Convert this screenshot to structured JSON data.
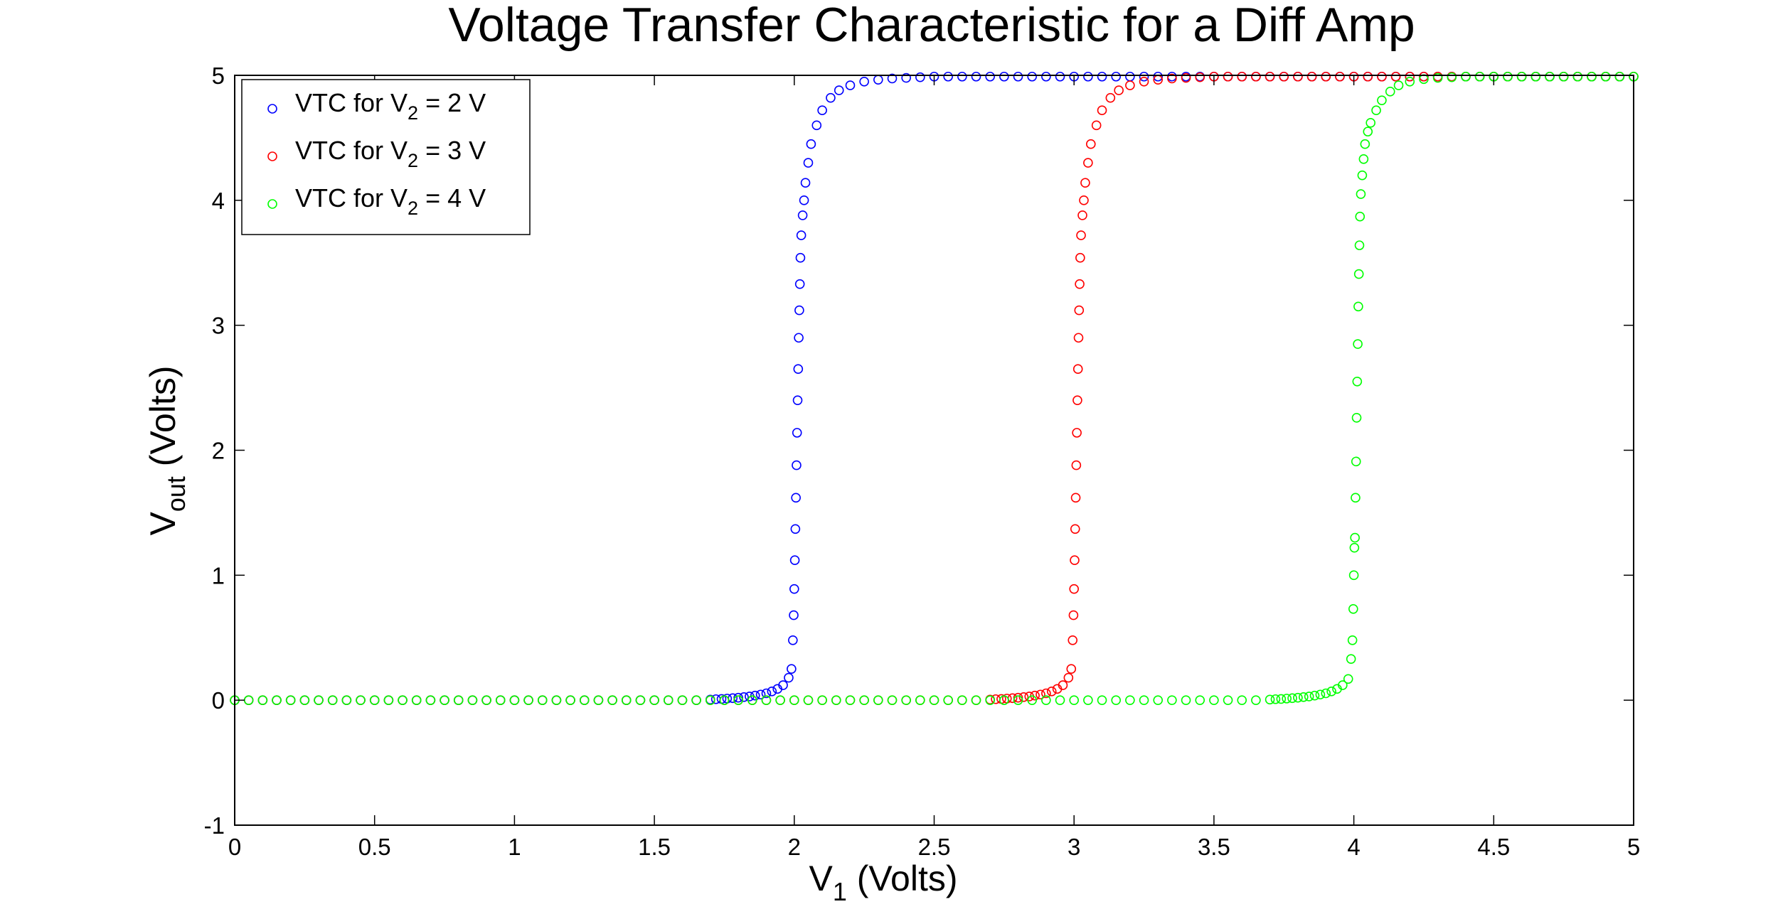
{
  "chart_data": {
    "type": "scatter",
    "title": "Voltage Transfer Characteristic for a Diff Amp",
    "xlabel": {
      "main": "V",
      "sub": "1",
      "rest": " (Volts)"
    },
    "ylabel": {
      "main": "V",
      "sub": "out",
      "rest": " (Volts)"
    },
    "xlim": [
      0,
      5
    ],
    "ylim": [
      -1,
      5
    ],
    "xticks": [
      0,
      0.5,
      1,
      1.5,
      2,
      2.5,
      3,
      3.5,
      4,
      4.5,
      5
    ],
    "xtick_labels": [
      "0",
      "0.5",
      "1",
      "1.5",
      "2",
      "2.5",
      "3",
      "3.5",
      "4",
      "4.5",
      "5"
    ],
    "yticks": [
      -1,
      0,
      1,
      2,
      3,
      4,
      5
    ],
    "ytick_labels": [
      "-1",
      "0",
      "1",
      "2",
      "3",
      "4",
      "5"
    ],
    "grid": false,
    "marker": "open-circle",
    "legend_position": "top-left",
    "series": [
      {
        "name": "VTC for V2 = 2 V",
        "label_parts": {
          "pre": "VTC for V",
          "sub": "2",
          "post": " = 2 V"
        },
        "color": "#0000ff",
        "x": [
          0,
          0.05,
          0.1,
          0.15,
          0.2,
          0.25,
          0.3,
          0.35,
          0.4,
          0.45,
          0.5,
          0.55,
          0.6,
          0.65,
          0.7,
          0.75,
          0.8,
          0.85,
          0.9,
          0.95,
          1,
          1.05,
          1.1,
          1.15,
          1.2,
          1.25,
          1.3,
          1.35,
          1.4,
          1.45,
          1.5,
          1.55,
          1.6,
          1.65,
          1.7,
          1.72,
          1.74,
          1.76,
          1.78,
          1.8,
          1.82,
          1.84,
          1.86,
          1.88,
          1.9,
          1.92,
          1.94,
          1.96,
          1.98,
          1.99,
          1.995,
          1.998,
          2,
          2.002,
          2.004,
          2.006,
          2.008,
          2.01,
          2.012,
          2.014,
          2.016,
          2.018,
          2.02,
          2.022,
          2.025,
          2.03,
          2.035,
          2.04,
          2.05,
          2.06,
          2.08,
          2.1,
          2.13,
          2.16,
          2.2,
          2.25,
          2.3,
          2.35,
          2.4,
          2.45,
          2.5,
          2.55,
          2.6,
          2.65,
          2.7,
          2.75,
          2.8,
          2.85,
          2.9,
          2.95,
          3,
          3.05,
          3.1,
          3.15,
          3.2,
          3.25,
          3.3,
          3.35,
          3.4,
          3.45,
          3.5,
          3.55,
          3.6,
          3.65,
          3.7,
          3.75,
          3.8,
          3.85,
          3.9,
          3.95,
          4,
          4.05,
          4.1,
          4.15,
          4.2,
          4.25,
          4.3,
          4.35,
          4.4,
          4.45,
          4.5,
          4.55,
          4.6,
          4.65,
          4.7,
          4.75,
          4.8,
          4.85,
          4.9,
          4.95,
          5
        ],
        "y": [
          0,
          0,
          0,
          0,
          0,
          0,
          0,
          0,
          0,
          0,
          0,
          0,
          0,
          0,
          0,
          0,
          0,
          0,
          0,
          0,
          0,
          0,
          0,
          0,
          0,
          0,
          0,
          0,
          0,
          0,
          0,
          0,
          0,
          0,
          0.005,
          0.008,
          0.01,
          0.013,
          0.016,
          0.02,
          0.025,
          0.03,
          0.037,
          0.045,
          0.055,
          0.07,
          0.09,
          0.12,
          0.18,
          0.25,
          0.48,
          0.68,
          0.89,
          1.12,
          1.37,
          1.62,
          1.88,
          2.14,
          2.4,
          2.65,
          2.9,
          3.12,
          3.33,
          3.54,
          3.72,
          3.88,
          4.0,
          4.14,
          4.3,
          4.45,
          4.6,
          4.72,
          4.82,
          4.88,
          4.92,
          4.95,
          4.965,
          4.975,
          4.98,
          4.985,
          4.99,
          4.99,
          4.99,
          4.99,
          4.99,
          4.99,
          4.99,
          4.99,
          4.99,
          4.99,
          4.99,
          4.99,
          4.99,
          4.99,
          4.99,
          4.99,
          4.99,
          4.99,
          4.99,
          4.99,
          4.99,
          4.99,
          4.99,
          4.99,
          4.99,
          4.99,
          4.99,
          4.99,
          4.99,
          4.99,
          4.99,
          4.99,
          4.99,
          4.99,
          4.99,
          4.99,
          4.99,
          4.99,
          4.99,
          4.99,
          4.99,
          4.99,
          4.99,
          4.99,
          4.99,
          4.99,
          4.99,
          4.99,
          4.99,
          4.99,
          4.99
        ]
      },
      {
        "name": "VTC for V2 = 3 V",
        "label_parts": {
          "pre": "VTC for V",
          "sub": "2",
          "post": " = 3 V"
        },
        "color": "#ff0000",
        "x": [
          0,
          0.05,
          0.1,
          0.15,
          0.2,
          0.25,
          0.3,
          0.35,
          0.4,
          0.45,
          0.5,
          0.55,
          0.6,
          0.65,
          0.7,
          0.75,
          0.8,
          0.85,
          0.9,
          0.95,
          1,
          1.05,
          1.1,
          1.15,
          1.2,
          1.25,
          1.3,
          1.35,
          1.4,
          1.45,
          1.5,
          1.55,
          1.6,
          1.65,
          1.7,
          1.75,
          1.8,
          1.85,
          1.9,
          1.95,
          2,
          2.05,
          2.1,
          2.15,
          2.2,
          2.25,
          2.3,
          2.35,
          2.4,
          2.45,
          2.5,
          2.55,
          2.6,
          2.65,
          2.7,
          2.72,
          2.74,
          2.76,
          2.78,
          2.8,
          2.82,
          2.84,
          2.86,
          2.88,
          2.9,
          2.92,
          2.94,
          2.96,
          2.98,
          2.99,
          2.995,
          2.998,
          3,
          3.002,
          3.004,
          3.006,
          3.008,
          3.01,
          3.012,
          3.014,
          3.016,
          3.018,
          3.02,
          3.022,
          3.025,
          3.03,
          3.035,
          3.04,
          3.05,
          3.06,
          3.08,
          3.1,
          3.13,
          3.16,
          3.2,
          3.25,
          3.3,
          3.35,
          3.4,
          3.45,
          3.5,
          3.55,
          3.6,
          3.65,
          3.7,
          3.75,
          3.8,
          3.85,
          3.9,
          3.95,
          4,
          4.05,
          4.1,
          4.15,
          4.2,
          4.25,
          4.3,
          4.35,
          4.4,
          4.45,
          4.5,
          4.55,
          4.6,
          4.65,
          4.7,
          4.75,
          4.8,
          4.85,
          4.9,
          4.95,
          5
        ],
        "y": [
          0,
          0,
          0,
          0,
          0,
          0,
          0,
          0,
          0,
          0,
          0,
          0,
          0,
          0,
          0,
          0,
          0,
          0,
          0,
          0,
          0,
          0,
          0,
          0,
          0,
          0,
          0,
          0,
          0,
          0,
          0,
          0,
          0,
          0,
          0,
          0,
          0,
          0,
          0,
          0,
          0,
          0,
          0,
          0,
          0,
          0,
          0,
          0,
          0,
          0,
          0,
          0,
          0,
          0,
          0.005,
          0.008,
          0.01,
          0.013,
          0.016,
          0.02,
          0.025,
          0.03,
          0.037,
          0.045,
          0.055,
          0.07,
          0.09,
          0.12,
          0.18,
          0.25,
          0.48,
          0.68,
          0.89,
          1.12,
          1.37,
          1.62,
          1.88,
          2.14,
          2.4,
          2.65,
          2.9,
          3.12,
          3.33,
          3.54,
          3.72,
          3.88,
          4.0,
          4.14,
          4.3,
          4.45,
          4.6,
          4.72,
          4.82,
          4.88,
          4.92,
          4.95,
          4.965,
          4.975,
          4.98,
          4.985,
          4.99,
          4.99,
          4.99,
          4.99,
          4.99,
          4.99,
          4.99,
          4.99,
          4.99,
          4.99,
          4.99,
          4.99,
          4.99,
          4.99,
          4.99,
          4.99,
          4.99,
          4.99,
          4.99,
          4.99,
          4.99,
          4.99,
          4.99,
          4.99,
          4.99,
          4.99,
          4.99,
          4.99,
          4.99,
          4.99,
          4.99
        ]
      },
      {
        "name": "VTC for V2 = 4 V",
        "label_parts": {
          "pre": "VTC for V",
          "sub": "2",
          "post": " = 4 V"
        },
        "color": "#00ff00",
        "x": [
          0,
          0.05,
          0.1,
          0.15,
          0.2,
          0.25,
          0.3,
          0.35,
          0.4,
          0.45,
          0.5,
          0.55,
          0.6,
          0.65,
          0.7,
          0.75,
          0.8,
          0.85,
          0.9,
          0.95,
          1,
          1.05,
          1.1,
          1.15,
          1.2,
          1.25,
          1.3,
          1.35,
          1.4,
          1.45,
          1.5,
          1.55,
          1.6,
          1.65,
          1.7,
          1.75,
          1.8,
          1.85,
          1.9,
          1.95,
          2,
          2.05,
          2.1,
          2.15,
          2.2,
          2.25,
          2.3,
          2.35,
          2.4,
          2.45,
          2.5,
          2.55,
          2.6,
          2.65,
          2.7,
          2.75,
          2.8,
          2.85,
          2.9,
          2.95,
          3,
          3.05,
          3.1,
          3.15,
          3.2,
          3.25,
          3.3,
          3.35,
          3.4,
          3.45,
          3.5,
          3.55,
          3.6,
          3.65,
          3.7,
          3.72,
          3.74,
          3.76,
          3.78,
          3.8,
          3.82,
          3.84,
          3.86,
          3.88,
          3.9,
          3.92,
          3.94,
          3.96,
          3.98,
          3.99,
          3.995,
          3.998,
          4,
          4.002,
          4.004,
          4.006,
          4.008,
          4.01,
          4.012,
          4.014,
          4.016,
          4.018,
          4.02,
          4.022,
          4.025,
          4.03,
          4.035,
          4.04,
          4.05,
          4.06,
          4.08,
          4.1,
          4.13,
          4.16,
          4.2,
          4.25,
          4.3,
          4.35,
          4.4,
          4.45,
          4.5,
          4.55,
          4.6,
          4.65,
          4.7,
          4.75,
          4.8,
          4.85,
          4.9,
          4.95,
          5
        ],
        "y": [
          0,
          0,
          0,
          0,
          0,
          0,
          0,
          0,
          0,
          0,
          0,
          0,
          0,
          0,
          0,
          0,
          0,
          0,
          0,
          0,
          0,
          0,
          0,
          0,
          0,
          0,
          0,
          0,
          0,
          0,
          0,
          0,
          0,
          0,
          0,
          0,
          0,
          0,
          0,
          0,
          0,
          0,
          0,
          0,
          0,
          0,
          0,
          0,
          0,
          0,
          0,
          0,
          0,
          0,
          0,
          0,
          0,
          0,
          0,
          0,
          0,
          0,
          0,
          0,
          0,
          0,
          0,
          0,
          0,
          0,
          0,
          0,
          0,
          0,
          0.005,
          0.008,
          0.01,
          0.013,
          0.016,
          0.02,
          0.025,
          0.03,
          0.037,
          0.045,
          0.055,
          0.07,
          0.09,
          0.12,
          0.17,
          0.33,
          0.48,
          0.73,
          1.0,
          1.22,
          1.3,
          1.62,
          1.91,
          2.26,
          2.55,
          2.85,
          3.15,
          3.41,
          3.64,
          3.87,
          4.05,
          4.2,
          4.33,
          4.45,
          4.55,
          4.62,
          4.72,
          4.8,
          4.87,
          4.92,
          4.95,
          4.97,
          4.98,
          4.985,
          4.99,
          4.99,
          4.99,
          4.99,
          4.99,
          4.99,
          4.99,
          4.99,
          4.99,
          4.99,
          4.99,
          4.99,
          4.99
        ]
      }
    ]
  }
}
